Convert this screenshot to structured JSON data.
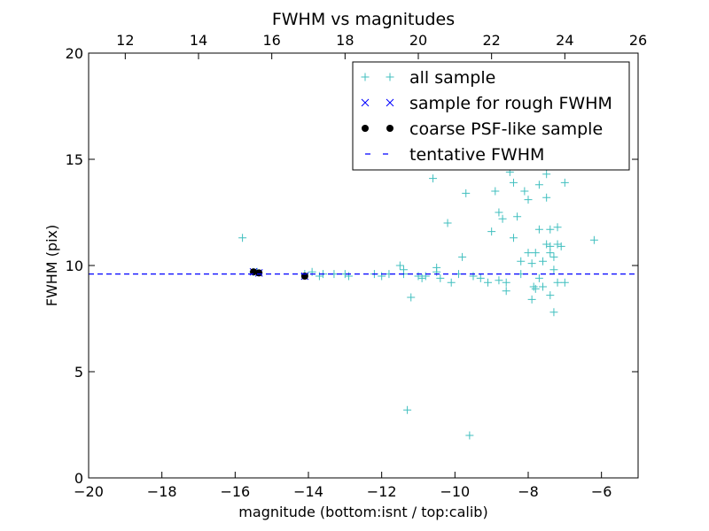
{
  "chart_data": {
    "type": "scatter",
    "title": "FWHM vs magnitudes",
    "xlabel": "magnitude (bottom:isnt / top:calib)",
    "ylabel": "FWHM (pix)",
    "xlim": [
      -20,
      -5
    ],
    "ylim": [
      0,
      20
    ],
    "top_xlim": [
      11,
      26
    ],
    "x_ticks": [
      -20,
      -18,
      -16,
      -14,
      -12,
      -10,
      -8,
      -6
    ],
    "x_tick_labels": [
      "−20",
      "−18",
      "−16",
      "−14",
      "−12",
      "−10",
      "−8",
      "−6"
    ],
    "top_x_ticks": [
      12,
      14,
      16,
      18,
      20,
      22,
      24,
      26
    ],
    "top_x_tick_labels": [
      "12",
      "14",
      "16",
      "18",
      "20",
      "22",
      "24",
      "26"
    ],
    "y_ticks": [
      0,
      5,
      10,
      15,
      20
    ],
    "y_tick_labels": [
      "0",
      "5",
      "10",
      "15",
      "20"
    ],
    "grid": false,
    "legend_position": "top-right",
    "series": [
      {
        "name": "all sample",
        "marker": "plus",
        "color": "#40bfbf",
        "points": [
          [
            -15.8,
            11.3
          ],
          [
            -15.5,
            9.7
          ],
          [
            -15.4,
            9.7
          ],
          [
            -14.1,
            9.6
          ],
          [
            -13.9,
            9.7
          ],
          [
            -13.7,
            9.5
          ],
          [
            -13.6,
            9.6
          ],
          [
            -13.3,
            9.6
          ],
          [
            -13.0,
            9.6
          ],
          [
            -12.9,
            9.5
          ],
          [
            -12.2,
            9.6
          ],
          [
            -12.0,
            9.5
          ],
          [
            -11.8,
            9.6
          ],
          [
            -11.5,
            10.0
          ],
          [
            -11.4,
            9.8
          ],
          [
            -11.4,
            9.6
          ],
          [
            -11.3,
            3.2
          ],
          [
            -11.2,
            8.5
          ],
          [
            -11.0,
            9.5
          ],
          [
            -10.9,
            9.4
          ],
          [
            -10.8,
            9.5
          ],
          [
            -10.6,
            14.1
          ],
          [
            -10.5,
            9.9
          ],
          [
            -10.5,
            9.7
          ],
          [
            -10.4,
            9.4
          ],
          [
            -10.2,
            12.0
          ],
          [
            -10.1,
            9.2
          ],
          [
            -9.9,
            9.6
          ],
          [
            -9.8,
            10.4
          ],
          [
            -9.7,
            13.4
          ],
          [
            -9.6,
            2.0
          ],
          [
            -9.5,
            9.5
          ],
          [
            -9.3,
            9.4
          ],
          [
            -9.1,
            9.2
          ],
          [
            -9.0,
            11.6
          ],
          [
            -8.9,
            13.5
          ],
          [
            -8.8,
            9.3
          ],
          [
            -8.8,
            12.5
          ],
          [
            -8.7,
            12.2
          ],
          [
            -8.6,
            9.2
          ],
          [
            -8.5,
            14.4
          ],
          [
            -8.4,
            13.9
          ],
          [
            -8.4,
            11.3
          ],
          [
            -8.3,
            12.3
          ],
          [
            -8.2,
            9.6
          ],
          [
            -8.2,
            10.2
          ],
          [
            -8.1,
            13.5
          ],
          [
            -8.0,
            10.6
          ],
          [
            -8.0,
            13.1
          ],
          [
            -7.9,
            10.1
          ],
          [
            -7.9,
            8.4
          ],
          [
            -7.8,
            10.6
          ],
          [
            -7.8,
            8.9
          ],
          [
            -7.7,
            13.8
          ],
          [
            -7.7,
            11.7
          ],
          [
            -7.7,
            9.4
          ],
          [
            -7.6,
            10.2
          ],
          [
            -7.5,
            14.3
          ],
          [
            -7.5,
            13.2
          ],
          [
            -7.5,
            11.0
          ],
          [
            -7.4,
            10.6
          ],
          [
            -7.4,
            11.7
          ],
          [
            -7.4,
            10.9
          ],
          [
            -7.4,
            8.6
          ],
          [
            -7.3,
            7.8
          ],
          [
            -7.3,
            10.4
          ],
          [
            -7.2,
            11.8
          ],
          [
            -7.2,
            11.0
          ],
          [
            -7.2,
            9.2
          ],
          [
            -7.1,
            10.9
          ],
          [
            -7.0,
            13.9
          ],
          [
            -7.0,
            9.2
          ],
          [
            -6.2,
            11.2
          ],
          [
            -7.3,
            9.8
          ],
          [
            -8.6,
            8.8
          ],
          [
            -7.85,
            9.0
          ],
          [
            -7.6,
            9.0
          ]
        ]
      },
      {
        "name": "sample for rough FWHM",
        "marker": "x",
        "color": "#0000ff",
        "points": [
          [
            -15.5,
            9.7
          ],
          [
            -15.35,
            9.65
          ],
          [
            -14.1,
            9.5
          ]
        ]
      },
      {
        "name": "coarse PSF-like sample",
        "marker": "dot",
        "color": "#000000",
        "points": [
          [
            -15.5,
            9.7
          ],
          [
            -15.35,
            9.65
          ],
          [
            -14.1,
            9.5
          ]
        ]
      },
      {
        "name": "tentative FWHM",
        "marker": "hline",
        "color": "#0000ff",
        "y": 9.6
      }
    ]
  }
}
